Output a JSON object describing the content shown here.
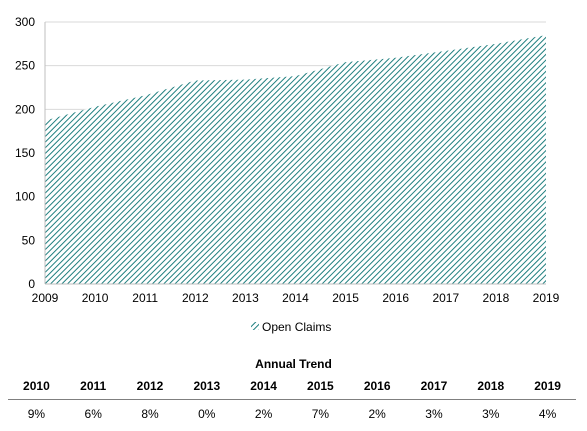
{
  "chart_data": {
    "type": "area",
    "x": [
      "2009",
      "2010",
      "2011",
      "2012",
      "2013",
      "2014",
      "2015",
      "2016",
      "2017",
      "2018",
      "2019"
    ],
    "series": [
      {
        "name": "Open Claims",
        "values": [
          187,
          203,
          216,
          233,
          234,
          238,
          254,
          259,
          267,
          275,
          285
        ]
      }
    ],
    "ylim": [
      0,
      300
    ],
    "yticks": [
      0,
      50,
      100,
      150,
      200,
      250,
      300
    ],
    "grid": true,
    "legend": "bottom",
    "fill_pattern": "diagonal-hatch",
    "colors": {
      "series": "#1f7f7f",
      "grid": "#d9d9d9",
      "axis": "#bfbfbf"
    }
  },
  "trend_table": {
    "title": "Annual Trend",
    "years": [
      "2010",
      "2011",
      "2012",
      "2013",
      "2014",
      "2015",
      "2016",
      "2017",
      "2018",
      "2019"
    ],
    "values": [
      "9%",
      "6%",
      "8%",
      "0%",
      "2%",
      "7%",
      "2%",
      "3%",
      "3%",
      "4%"
    ]
  }
}
